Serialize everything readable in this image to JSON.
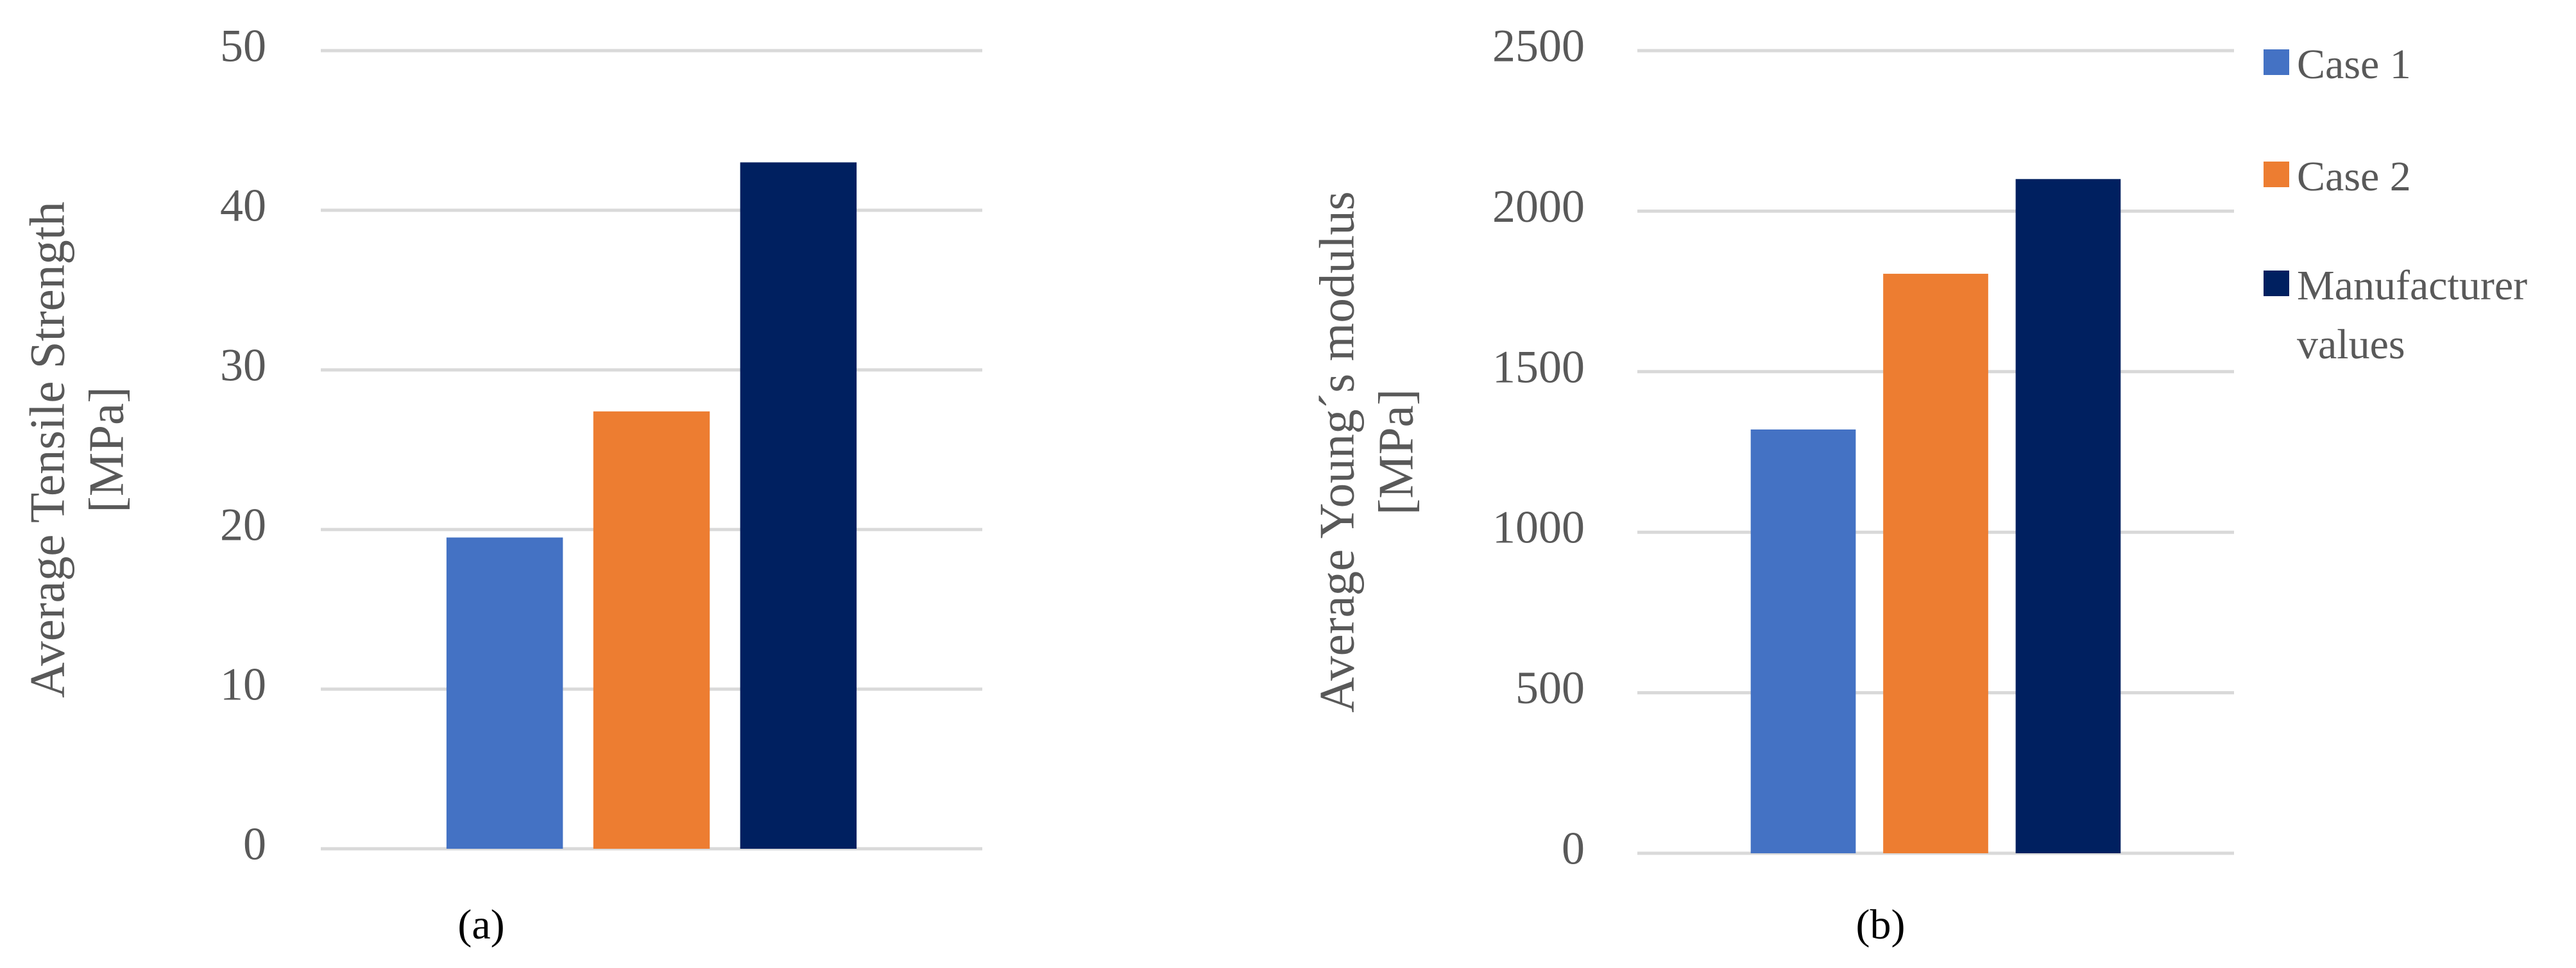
{
  "chart_data": [
    {
      "type": "bar",
      "ylabel": [
        "Average Tensile Strength",
        "[MPa]"
      ],
      "caption": "(a)",
      "series": [
        {
          "color": "#4472c4",
          "values": [
            19.5
          ]
        },
        {
          "color": "#ed7d31",
          "values": [
            27.4
          ]
        },
        {
          "color": "#002060",
          "values": [
            43
          ]
        }
      ],
      "ylim": [
        0,
        50
      ],
      "yticks": [
        0,
        10,
        20,
        30,
        40,
        50
      ],
      "grid": true
    },
    {
      "type": "bar",
      "ylabel": [
        "Average Young´s modulus",
        "[MPa]"
      ],
      "caption": "(b)",
      "series": [
        {
          "name": "Case 1",
          "color": "#4472c4",
          "values": [
            1320
          ]
        },
        {
          "name": "Case 2",
          "color": "#ed7d31",
          "values": [
            1805
          ]
        },
        {
          "name": "Manufacturer values",
          "color": "#002060",
          "values": [
            2100
          ]
        }
      ],
      "ylim": [
        0,
        2500
      ],
      "yticks": [
        0,
        500,
        1000,
        1500,
        2000,
        2500
      ],
      "grid": true,
      "legend": "right"
    }
  ]
}
